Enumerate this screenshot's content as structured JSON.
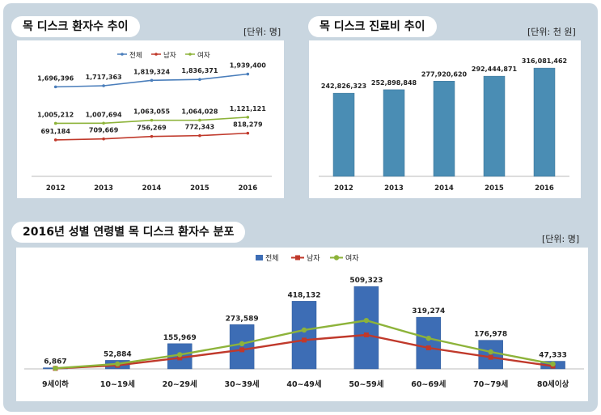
{
  "panels": {
    "p1": {
      "title": "목 디스크 환자수 추이",
      "unit": "[단위: 명]"
    },
    "p2": {
      "title": "목 디스크 진료비 추이",
      "unit": "[단위: 천 원]"
    },
    "p3": {
      "title": "2016년 성별 연령별 목 디스크 환자수 분포",
      "unit": "[단위: 명]"
    }
  },
  "colors": {
    "total": "#4a7ebb",
    "male": "#c0392b",
    "female": "#8db33a",
    "bar2": "#4a8db4",
    "bar3": "#3d6db5"
  },
  "chart_data": [
    {
      "type": "line",
      "title": "목 디스크 환자수 추이",
      "categories": [
        "2012",
        "2013",
        "2014",
        "2015",
        "2016"
      ],
      "series": [
        {
          "name": "전체",
          "values": [
            1696396,
            1717363,
            1819324,
            1836371,
            1939400
          ],
          "labels": [
            "1,696,396",
            "1,717,363",
            "1,819,324",
            "1,836,371",
            "1,939,400"
          ]
        },
        {
          "name": "남자",
          "values": [
            691184,
            709669,
            756269,
            772343,
            818279
          ],
          "labels": [
            "691,184",
            "709,669",
            "756,269",
            "772,343",
            "818,279"
          ]
        },
        {
          "name": "여자",
          "values": [
            1005212,
            1007694,
            1063055,
            1064028,
            1121121
          ],
          "labels": [
            "1,005,212",
            "1,007,694",
            "1,063,055",
            "1,064,028",
            "1,121,121"
          ]
        }
      ],
      "ylim": [
        0,
        2300000
      ],
      "grid": false,
      "legend": "top"
    },
    {
      "type": "bar",
      "title": "목 디스크 진료비 추이",
      "categories": [
        "2012",
        "2013",
        "2014",
        "2015",
        "2016"
      ],
      "values": [
        242826323,
        252898848,
        277920620,
        292444871,
        316081462
      ],
      "labels": [
        "242,826,323",
        "252,898,848",
        "277,920,620",
        "292,444,871",
        "316,081,462"
      ],
      "ylim": [
        0,
        340000000
      ],
      "grid": false
    },
    {
      "type": "bar",
      "title": "2016년 성별 연령별 목 디스크 환자수 분포",
      "categories": [
        "9세이하",
        "10~19세",
        "20~29세",
        "30~39세",
        "40~49세",
        "50~59세",
        "60~69세",
        "70~79세",
        "80세이상"
      ],
      "series": [
        {
          "name": "전체",
          "type": "bar",
          "values": [
            6867,
            52884,
            155969,
            273589,
            418132,
            509323,
            319274,
            176978,
            47333
          ],
          "labels": [
            "6,867",
            "52,884",
            "155,969",
            "273,589",
            "418,132",
            "509,323",
            "319,274",
            "176,978",
            "47,333"
          ]
        },
        {
          "name": "남자",
          "type": "line",
          "values": [
            3000,
            22000,
            68000,
            118000,
            178000,
            210000,
            130000,
            72000,
            17000
          ]
        },
        {
          "name": "여자",
          "type": "line",
          "values": [
            3800,
            30800,
            88000,
            155600,
            240100,
            299300,
            189300,
            105000,
            30300
          ]
        }
      ],
      "ylim": [
        0,
        560000
      ],
      "grid": false,
      "legend": "top"
    }
  ]
}
